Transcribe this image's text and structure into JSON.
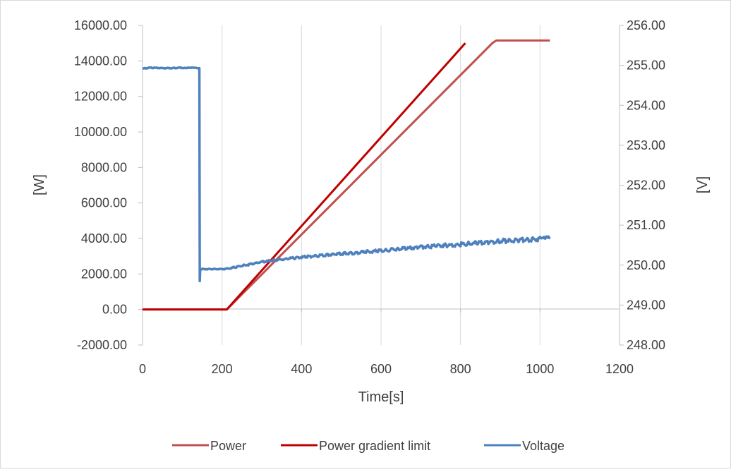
{
  "chart_data": {
    "type": "line",
    "title": "",
    "xlabel": "Time[s]",
    "ylabel_left": "[W]",
    "ylabel_right": "[V]",
    "xlim": [
      0,
      1200
    ],
    "ylim_left": [
      -2000,
      16000
    ],
    "ylim_right": [
      248,
      256
    ],
    "x_ticks": [
      0,
      200,
      400,
      600,
      800,
      1000,
      1200
    ],
    "x_tick_labels": [
      "0",
      "200",
      "400",
      "600",
      "800",
      "1000",
      "1200"
    ],
    "y_left_ticks": [
      -2000,
      0,
      2000,
      4000,
      6000,
      8000,
      10000,
      12000,
      14000,
      16000
    ],
    "y_left_tick_labels": [
      "-2000.00",
      "0.00",
      "2000.00",
      "4000.00",
      "6000.00",
      "8000.00",
      "10000.00",
      "12000.00",
      "14000.00",
      "16000.00"
    ],
    "y_right_ticks": [
      248,
      249,
      250,
      251,
      252,
      253,
      254,
      255,
      256
    ],
    "y_right_tick_labels": [
      "248.00",
      "249.00",
      "250.00",
      "251.00",
      "252.00",
      "253.00",
      "254.00",
      "255.00",
      "256.00"
    ],
    "grid": "vertical",
    "legend_position": "bottom",
    "series": [
      {
        "name": "Power",
        "axis": "left",
        "color": "#c0504d",
        "x": [
          0,
          212,
          880,
          890,
          960,
          1025
        ],
        "y": [
          0,
          0,
          15000,
          15150,
          15150,
          15150
        ]
      },
      {
        "name": "Power gradient limit",
        "axis": "left",
        "color": "#c00000",
        "x": [
          0,
          212,
          812
        ],
        "y": [
          0,
          0,
          15000
        ]
      },
      {
        "name": "Voltage",
        "axis": "right",
        "color": "#4f81bd",
        "x": [
          0,
          20,
          60,
          100,
          143,
          144,
          145,
          150,
          210,
          300,
          400,
          500,
          600,
          700,
          800,
          900,
          1000,
          1025
        ],
        "y": [
          254.92,
          254.94,
          254.93,
          254.94,
          254.93,
          249.6,
          249.88,
          249.9,
          249.9,
          250.08,
          250.2,
          250.28,
          250.36,
          250.45,
          250.52,
          250.6,
          250.65,
          250.66
        ]
      }
    ]
  }
}
